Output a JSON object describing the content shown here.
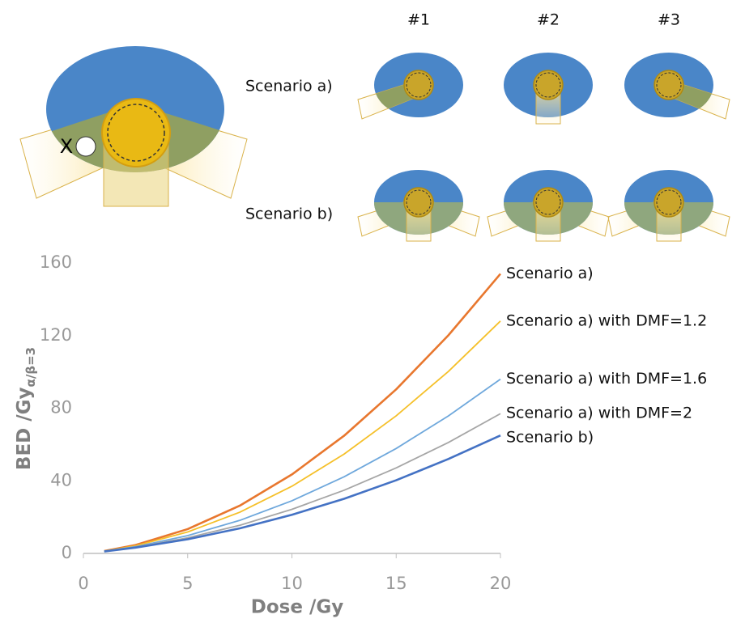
{
  "diagram": {
    "column_labels": [
      "#1",
      "#2",
      "#3"
    ],
    "row_labels": [
      "Scenario a)",
      "Scenario b)"
    ],
    "marker_label": "X"
  },
  "chart_data": {
    "type": "line",
    "x_label": "Dose /Gy",
    "y_label": "BED /Gy",
    "y_label_subscript": "α/β=3",
    "x": [
      1,
      2.5,
      5,
      7.5,
      10,
      12.5,
      15,
      17.5,
      20
    ],
    "series": [
      {
        "name": "Scenario a)",
        "color": "#e8772e",
        "width": 2.6,
        "values": [
          1.3,
          4.6,
          13.4,
          26.3,
          43.5,
          64.8,
          90.4,
          120.1,
          154
        ]
      },
      {
        "name": "Scenario a) with DMF=1.2",
        "color": "#f5c02a",
        "width": 1.8,
        "values": [
          1.3,
          4.2,
          11.8,
          22.7,
          37,
          54.7,
          75.8,
          100.2,
          128
        ]
      },
      {
        "name": "Scenario a) with DMF=1.6",
        "color": "#6fa8dc",
        "width": 1.8,
        "values": [
          1.2,
          3.7,
          9.8,
          18.2,
          29,
          42.2,
          57.8,
          75.7,
          96
        ]
      },
      {
        "name": "Scenario a) with DMF=2",
        "color": "#a6a6a6",
        "width": 1.8,
        "values": [
          1.1,
          3.4,
          8.6,
          15.5,
          24.3,
          34.8,
          47.1,
          61.1,
          77
        ]
      },
      {
        "name": "Scenario b)",
        "color": "#4472c4",
        "width": 2.6,
        "values": [
          1.1,
          3.2,
          7.8,
          13.8,
          21.3,
          30.1,
          40.3,
          52,
          65
        ]
      }
    ],
    "xlim": [
      0,
      20
    ],
    "xticks": [
      0,
      5,
      10,
      15,
      20
    ],
    "ylim": [
      0,
      160
    ],
    "yticks": [
      0,
      40,
      80,
      120,
      160
    ]
  }
}
